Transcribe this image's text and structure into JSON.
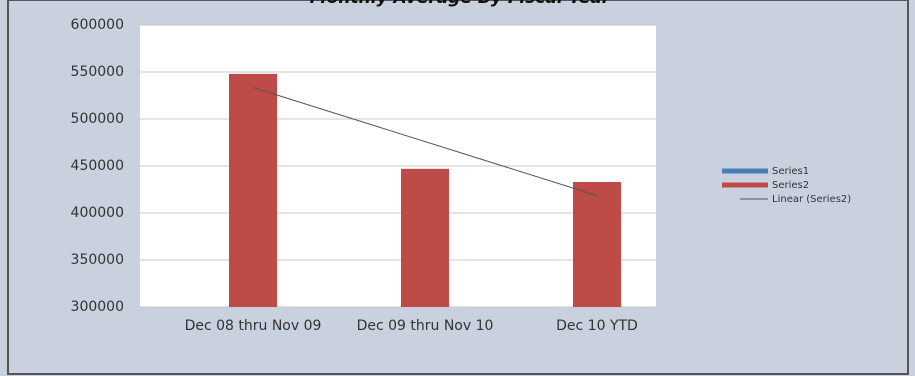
{
  "chart_data": {
    "type": "bar",
    "title": "Monthly Average By Fiscal Year",
    "categories": [
      "Dec 08 thru Nov 09",
      "Dec 09 thru Nov 10",
      "Dec 10 YTD"
    ],
    "series": [
      {
        "name": "Series1",
        "color": "#4a7ebb",
        "values": [
          null,
          null,
          null
        ]
      },
      {
        "name": "Series2",
        "color": "#be4b48",
        "values": [
          548000,
          447000,
          433000
        ]
      }
    ],
    "trendline": {
      "name": "Linear (Series2)",
      "series": 1,
      "color": "#555555"
    },
    "ylim": [
      300000,
      600000
    ],
    "yticks": [
      300000,
      350000,
      400000,
      450000,
      500000,
      550000,
      600000
    ],
    "grid": true,
    "legend": "right"
  }
}
